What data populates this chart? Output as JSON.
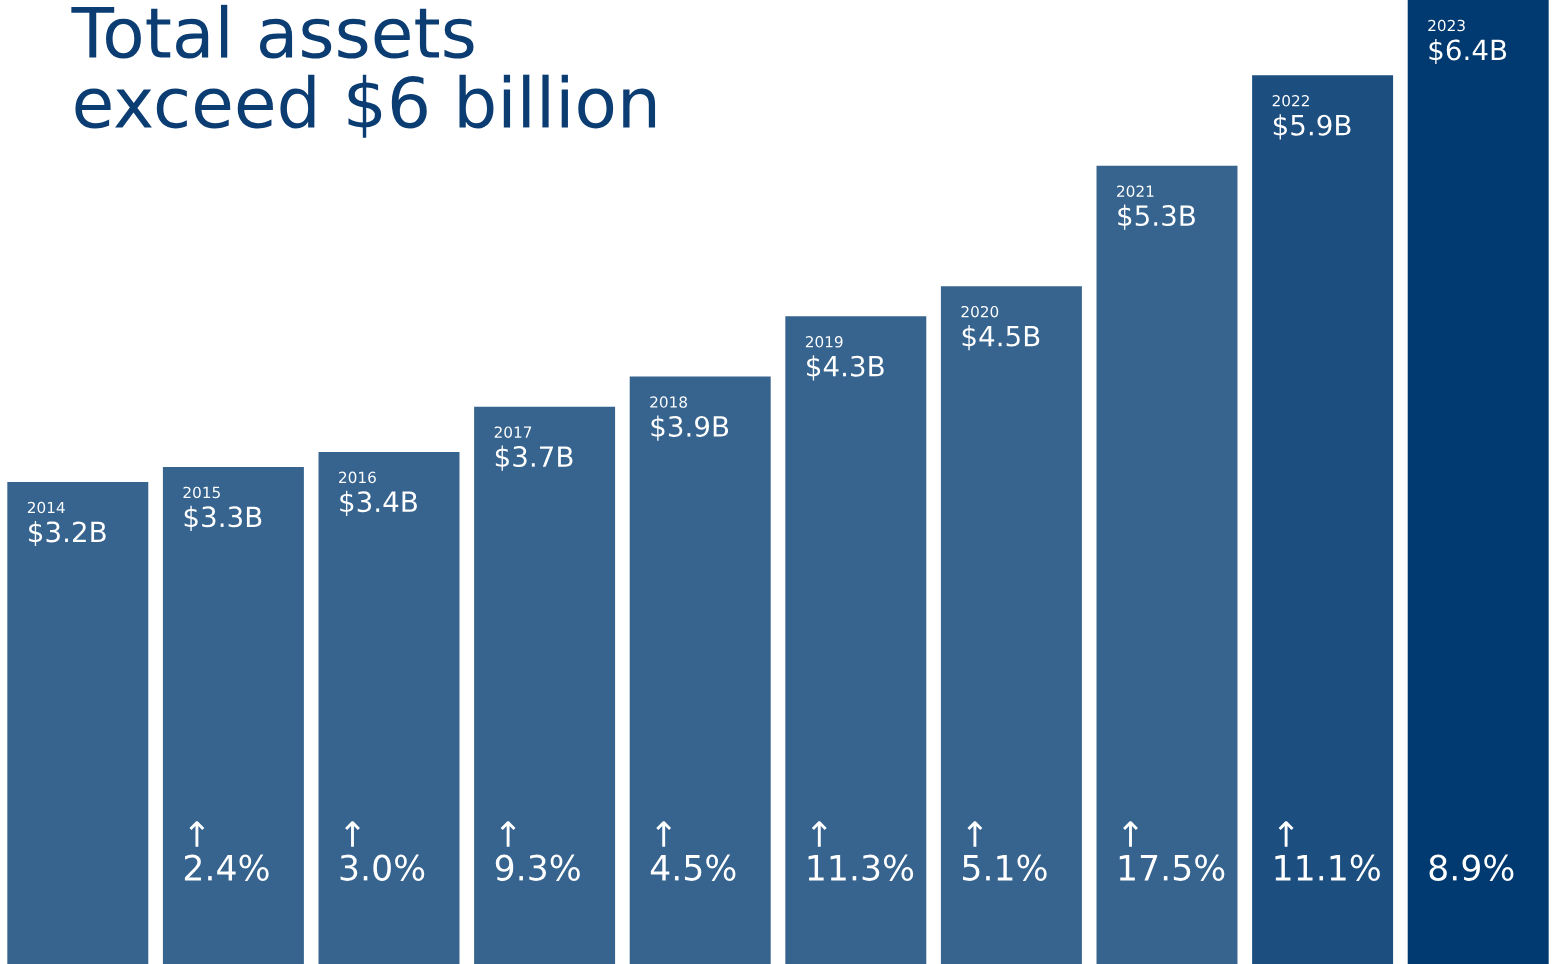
{
  "chart_data": {
    "type": "bar",
    "title": "Total assets\nexceed $6 billion",
    "categories": [
      "2014",
      "2015",
      "2016",
      "2017",
      "2018",
      "2019",
      "2020",
      "2021",
      "2022",
      "2023"
    ],
    "values": [
      3.2,
      3.3,
      3.4,
      3.7,
      3.9,
      4.3,
      4.5,
      5.3,
      5.9,
      6.4
    ],
    "value_labels": [
      "$3.2B",
      "$3.3B",
      "$3.4B",
      "$3.7B",
      "$3.9B",
      "$4.3B",
      "$4.5B",
      "$5.3B",
      "$5.9B",
      "$6.4B"
    ],
    "colors": [
      "#36648f",
      "#36648f",
      "#36648f",
      "#36648f",
      "#36648f",
      "#36648f",
      "#36648f",
      "#36648f",
      "#1d4e80",
      "#003a70"
    ],
    "annotations": [
      "↑\n2.4%",
      "↑\n3.0%",
      "↑\n9.3%",
      "↑\n4.5%",
      "↑\n11.3%",
      "↑\n5.1%",
      "↑\n17.5%",
      "↑\n11.1%",
      "8.9%"
    ]
  }
}
